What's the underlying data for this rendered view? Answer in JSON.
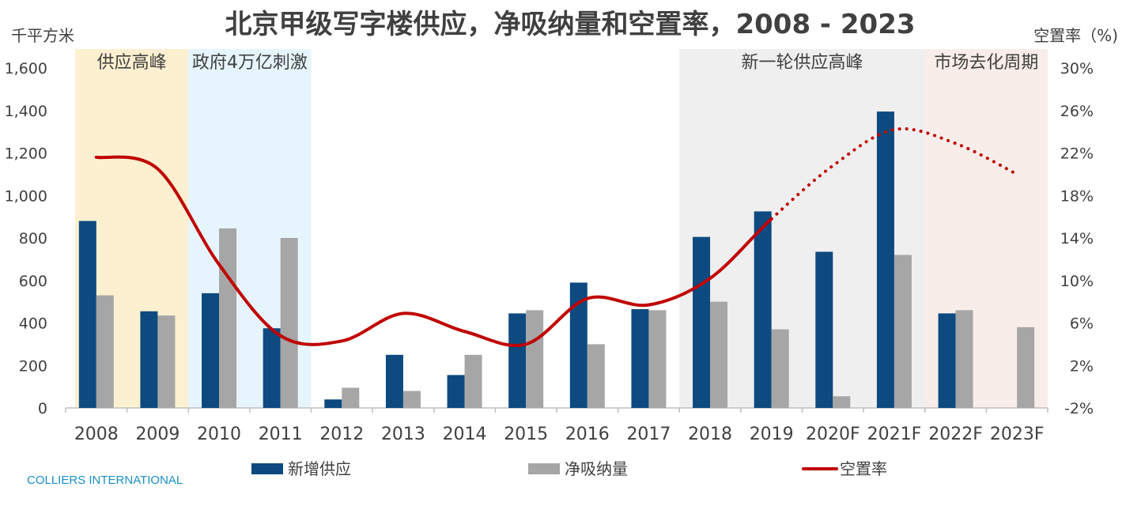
{
  "chart_data": {
    "type": "bar",
    "title": "北京甲级写字楼供应，净吸纳量和空置率，2008 - 2023",
    "ylabel_left": "千平方米",
    "ylabel_right": "空置率（%)",
    "ylim_left": [
      0,
      1600
    ],
    "ylim_right": [
      -2,
      30
    ],
    "yticks_left": [
      "0",
      "200",
      "400",
      "600",
      "800",
      "1,000",
      "1,200",
      "1,400",
      "1,600"
    ],
    "yticks_left_values": [
      0,
      200,
      400,
      600,
      800,
      1000,
      1200,
      1400,
      1600
    ],
    "yticks_right": [
      "-2%",
      "2%",
      "6%",
      "10%",
      "14%",
      "18%",
      "22%",
      "26%",
      "30%"
    ],
    "yticks_right_values": [
      -2,
      2,
      6,
      10,
      14,
      18,
      22,
      26,
      30
    ],
    "categories": [
      "2008",
      "2009",
      "2010",
      "2011",
      "2012",
      "2013",
      "2014",
      "2015",
      "2016",
      "2017",
      "2018",
      "2019",
      "2020F",
      "2021F",
      "2022F",
      "2023F"
    ],
    "series": [
      {
        "name": "新增供应",
        "kind": "bar",
        "color": "#0d4a80",
        "values": [
          880,
          455,
          540,
          375,
          40,
          250,
          155,
          445,
          590,
          465,
          805,
          925,
          735,
          1395,
          445,
          null
        ]
      },
      {
        "name": "净吸纳量",
        "kind": "bar",
        "color": "#a6a6a6",
        "values": [
          530,
          435,
          845,
          800,
          95,
          80,
          250,
          460,
          300,
          460,
          500,
          370,
          55,
          720,
          460,
          380
        ]
      },
      {
        "name": "空置率",
        "kind": "line",
        "axis": "right",
        "color": "#c00000",
        "values": [
          21.6,
          20.5,
          11.5,
          4.8,
          4.3,
          6.9,
          5.2,
          4.0,
          8.3,
          7.7,
          10.2,
          15.8,
          20.8,
          24.2,
          22.9,
          20.0
        ],
        "dotted_from_category": "2019"
      }
    ],
    "regions": [
      {
        "label": "供应高峰",
        "from": "2008",
        "to": "2009",
        "color": "#fdf0d0"
      },
      {
        "label": "政府4万亿刺激",
        "from": "2010",
        "to": "2011",
        "color": "#e6f5fd"
      },
      {
        "label": "新一轮供应高峰",
        "from": "2018",
        "to": "2021F",
        "color": "#efefef"
      },
      {
        "label": "市场去化周期",
        "from": "2022F",
        "to": "2023F",
        "color": "#f8ede8"
      }
    ],
    "legend_position": "bottom",
    "grid": false
  },
  "source": "COLLIERS INTERNATIONAL"
}
